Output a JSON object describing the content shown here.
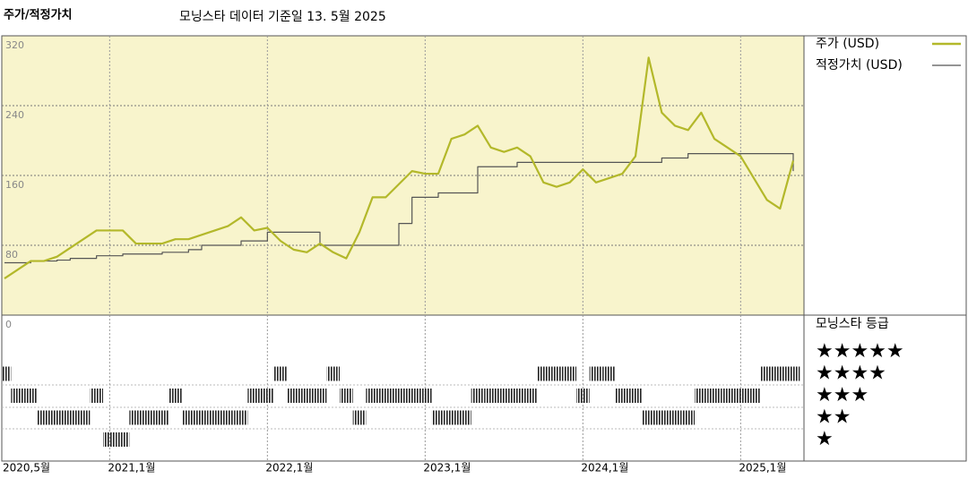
{
  "chart_data": {
    "type": "line",
    "title": "주가/적정가치",
    "subtitle": "모닝스타 데이터 기준일 13. 5월 2025",
    "categories": [
      "2020,5월",
      null,
      null,
      null,
      null,
      null,
      null,
      null,
      "2021,1월",
      null,
      null,
      null,
      null,
      null,
      null,
      null,
      null,
      null,
      null,
      null,
      "2022,1월",
      null,
      null,
      null,
      null,
      null,
      null,
      null,
      null,
      null,
      null,
      null,
      "2023,1월",
      null,
      null,
      null,
      null,
      null,
      null,
      null,
      null,
      null,
      null,
      null,
      "2024,1월",
      null,
      null,
      null,
      null,
      null,
      null,
      null,
      null,
      null,
      null,
      null,
      "2025,1월",
      null,
      null,
      null,
      null
    ],
    "series": [
      {
        "name": "주가 (USD)",
        "color": "#b3b82a",
        "values": [
          42,
          52,
          62,
          62,
          67,
          77,
          87,
          97,
          97,
          97,
          82,
          82,
          82,
          87,
          87,
          92,
          97,
          102,
          112,
          97,
          100,
          85,
          75,
          72,
          82,
          72,
          65,
          95,
          135,
          135,
          150,
          165,
          162,
          162,
          202,
          207,
          217,
          192,
          187,
          192,
          182,
          152,
          147,
          152,
          167,
          152,
          157,
          162,
          182,
          295,
          232,
          217,
          212,
          232,
          202,
          192,
          182,
          157,
          132,
          122,
          177
        ]
      },
      {
        "name": "적정가치 (USD)",
        "color": "#555555",
        "step": true,
        "values": [
          60,
          60,
          62,
          62,
          63,
          65,
          65,
          68,
          68,
          70,
          70,
          70,
          72,
          72,
          75,
          80,
          80,
          80,
          85,
          85,
          95,
          95,
          95,
          95,
          80,
          80,
          80,
          80,
          80,
          80,
          105,
          135,
          135,
          140,
          140,
          140,
          170,
          170,
          170,
          175,
          175,
          175,
          175,
          175,
          175,
          175,
          175,
          175,
          175,
          175,
          180,
          180,
          185,
          185,
          185,
          185,
          185,
          185,
          185,
          185,
          165
        ]
      }
    ],
    "ylim": [
      0,
      320
    ],
    "yticks": [
      0,
      80,
      160,
      240,
      320
    ],
    "grid": true,
    "rating": {
      "title": "모닝스타 등급",
      "levels": [
        "★★★★★",
        "★★★★",
        "★★★",
        "★★",
        "★"
      ],
      "values": [
        4,
        3,
        3,
        2,
        2,
        2,
        2,
        3,
        1,
        1,
        2,
        2,
        2,
        3,
        2,
        2,
        2,
        2,
        2,
        3,
        3,
        4,
        3,
        3,
        3,
        4,
        3,
        2,
        3,
        3,
        3,
        3,
        3,
        2,
        2,
        2,
        3,
        3,
        3,
        3,
        3,
        4,
        4,
        4,
        3,
        4,
        4,
        3,
        3,
        2,
        2,
        2,
        2,
        3,
        3,
        3,
        3,
        3,
        4,
        4,
        4
      ]
    }
  }
}
